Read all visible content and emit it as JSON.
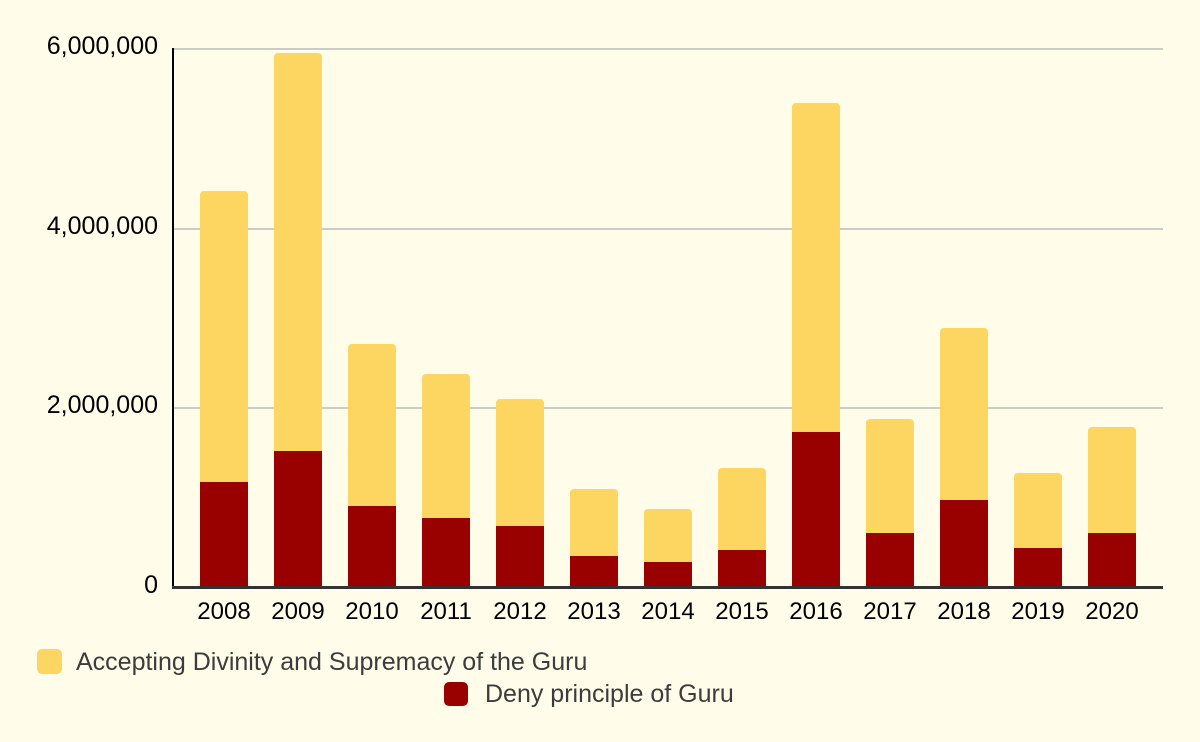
{
  "chart_data": {
    "type": "bar",
    "stacked": true,
    "title": "",
    "xlabel": "",
    "ylabel": "",
    "categories": [
      "2008",
      "2009",
      "2010",
      "2011",
      "2012",
      "2013",
      "2014",
      "2015",
      "2016",
      "2017",
      "2018",
      "2019",
      "2020"
    ],
    "series": [
      {
        "name": "Deny principle of Guru",
        "color": "#990000",
        "values": [
          1180000,
          1520000,
          910000,
          770000,
          680000,
          350000,
          280000,
          420000,
          1730000,
          610000,
          970000,
          440000,
          610000
        ]
      },
      {
        "name": "Accepting Divinity and Supremacy of the Guru",
        "color": "#FDD662",
        "values": [
          3240000,
          4440000,
          1800000,
          1610000,
          1420000,
          750000,
          600000,
          910000,
          3670000,
          1270000,
          1920000,
          840000,
          1180000
        ]
      }
    ],
    "stack_totals": [
      4420000,
      5960000,
      2710000,
      2380000,
      2100000,
      1100000,
      880000,
      1330000,
      5400000,
      1880000,
      2890000,
      1280000,
      1790000
    ],
    "ylim": [
      0,
      6000000
    ],
    "yticks": [
      {
        "value": 0,
        "label": "0"
      },
      {
        "value": 2000000,
        "label": "2,000,000"
      },
      {
        "value": 4000000,
        "label": "4,000,000"
      },
      {
        "value": 6000000,
        "label": "6,000,000"
      }
    ],
    "grid": true,
    "legend_position": "bottom"
  },
  "legend": {
    "items": [
      {
        "id": "accepting",
        "label": "Accepting Divinity and Supremacy of the Guru",
        "color": "#FDD662"
      },
      {
        "id": "deny",
        "label": "Deny principle of Guru",
        "color": "#990000"
      }
    ]
  },
  "colors": {
    "background": "#FFFDEA",
    "gridline": "#CCCCC6",
    "axis_line": "#000000",
    "baseline": "#333333",
    "axis_text": "#000000",
    "legend_text": "#3C3C3C"
  }
}
